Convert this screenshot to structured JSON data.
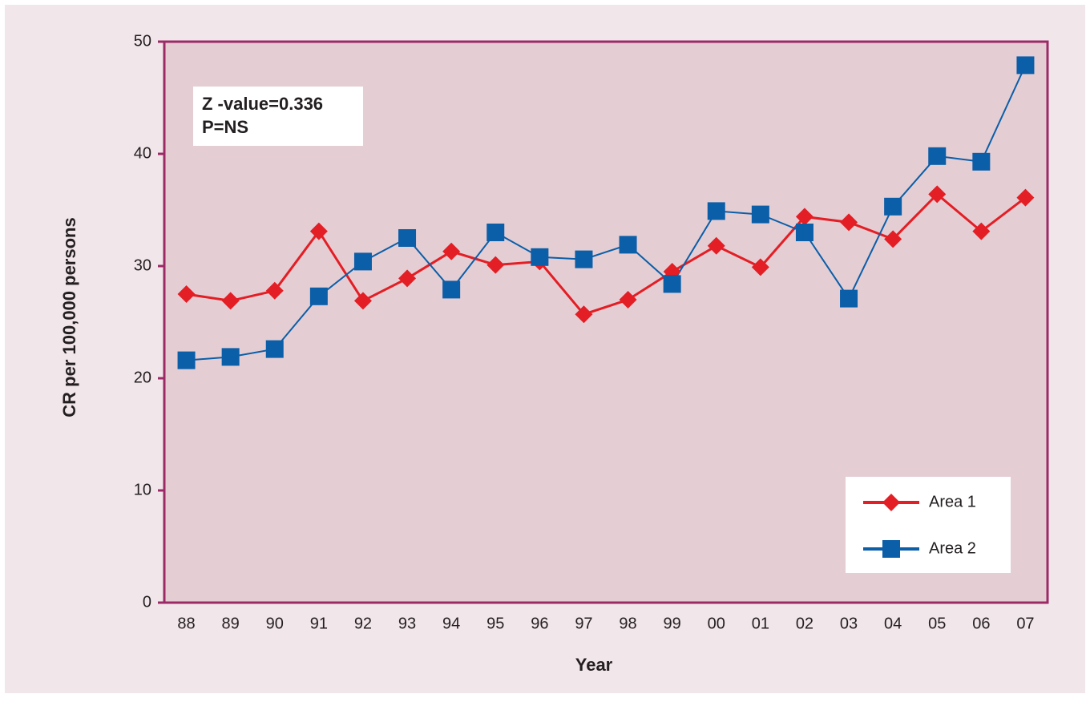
{
  "chart_data": {
    "type": "line",
    "ylabel": "CR per 100,000 persons",
    "xlabel": "Year",
    "annotations": [
      "Z -value=0.336",
      "P=NS"
    ],
    "categories": [
      "88",
      "89",
      "90",
      "91",
      "92",
      "93",
      "94",
      "95",
      "96",
      "97",
      "98",
      "99",
      "00",
      "01",
      "02",
      "03",
      "04",
      "05",
      "06",
      "07"
    ],
    "series": [
      {
        "name": "Area 1",
        "color": "#e31e24",
        "marker": "diamond",
        "values": [
          27.5,
          26.9,
          27.8,
          33.1,
          26.9,
          28.9,
          31.3,
          30.1,
          30.4,
          25.7,
          27.0,
          29.5,
          31.8,
          29.9,
          34.4,
          33.9,
          32.4,
          36.4,
          33.1,
          36.1
        ]
      },
      {
        "name": "Area 2",
        "color": "#0b5ea8",
        "marker": "square",
        "values": [
          21.6,
          21.9,
          22.6,
          27.3,
          30.4,
          32.5,
          27.9,
          33.0,
          30.8,
          30.6,
          31.9,
          28.4,
          34.9,
          34.6,
          33.0,
          27.1,
          35.3,
          39.8,
          39.3,
          47.9
        ]
      }
    ],
    "ylim": [
      0,
      50
    ],
    "yticks": [
      0,
      10,
      20,
      30,
      40,
      50
    ],
    "legend": "lower right"
  }
}
